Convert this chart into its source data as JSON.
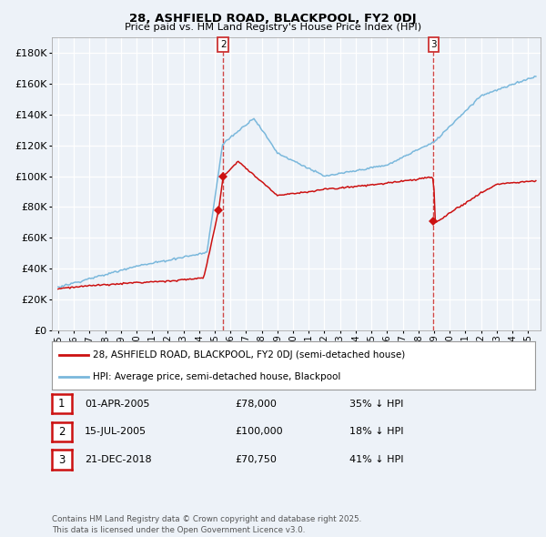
{
  "title_line1": "28, ASHFIELD ROAD, BLACKPOOL, FY2 0DJ",
  "title_line2": "Price paid vs. HM Land Registry's House Price Index (HPI)",
  "legend_line1": "28, ASHFIELD ROAD, BLACKPOOL, FY2 0DJ (semi-detached house)",
  "legend_line2": "HPI: Average price, semi-detached house, Blackpool",
  "transactions": [
    {
      "num": 1,
      "date_label": "01-APR-2005",
      "price": 78000,
      "pct": "35% ↓ HPI",
      "date_x": 2005.25
    },
    {
      "num": 2,
      "date_label": "15-JUL-2005",
      "price": 100000,
      "pct": "18% ↓ HPI",
      "date_x": 2005.54
    },
    {
      "num": 3,
      "date_label": "21-DEC-2018",
      "price": 70750,
      "pct": "41% ↓ HPI",
      "date_x": 2018.97
    }
  ],
  "background_color": "#EDF2F8",
  "plot_bg_color": "#EDF2F8",
  "hpi_color": "#7AB8DC",
  "price_color": "#CC1111",
  "vline_color": "#CC3333",
  "grid_color": "#FFFFFF",
  "footer_text": "Contains HM Land Registry data © Crown copyright and database right 2025.\nThis data is licensed under the Open Government Licence v3.0.",
  "ylim_min": 0,
  "ylim_max": 190000,
  "yticks": [
    0,
    20000,
    40000,
    60000,
    80000,
    100000,
    120000,
    140000,
    160000,
    180000
  ],
  "xmin": 1994.6,
  "xmax": 2025.8,
  "xticks": [
    1995,
    1996,
    1997,
    1998,
    1999,
    2000,
    2001,
    2002,
    2003,
    2004,
    2005,
    2006,
    2007,
    2008,
    2009,
    2010,
    2011,
    2012,
    2013,
    2014,
    2015,
    2016,
    2017,
    2018,
    2019,
    2020,
    2021,
    2022,
    2023,
    2024,
    2025
  ]
}
